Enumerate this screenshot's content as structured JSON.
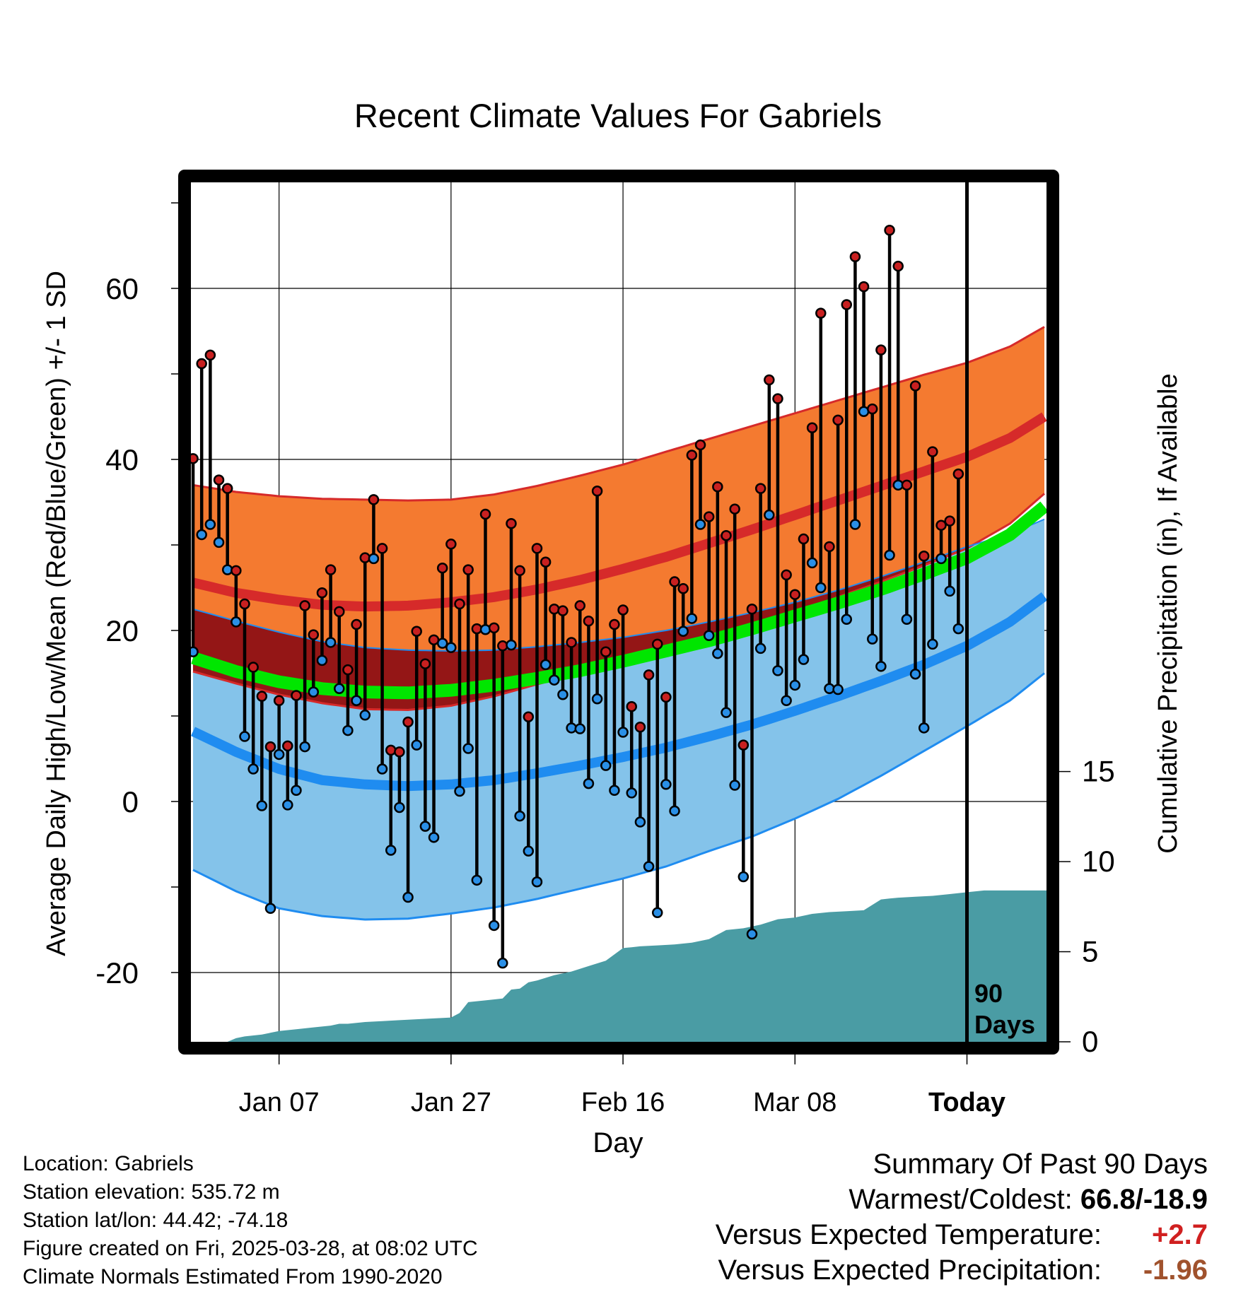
{
  "chart_data": {
    "type": "line",
    "title": "Recent Climate Values For Gabriels",
    "xlabel": "Day",
    "ylabel": "Average Daily High/Low/Mean (Red/Blue/Green) +/- 1 SD",
    "y2label": "Cumulative Precipitation (in), If Available",
    "ylim": [
      -28.1,
      72.4
    ],
    "y2lim": [
      0,
      47.7
    ],
    "xlim": [
      -0.25,
      99.25
    ],
    "yticks": [
      "60",
      "40",
      "20",
      "0",
      "-20"
    ],
    "ytick_values": [
      60,
      40,
      20,
      0,
      -20
    ],
    "y2ticks": [
      "15",
      "10",
      "5",
      "0"
    ],
    "y2tick_values": [
      15,
      10,
      5,
      0
    ],
    "xticks": [
      "Jan 07",
      "Jan 27",
      "Feb 16",
      "Mar 08",
      "Today"
    ],
    "xtick_days": [
      10,
      30,
      50,
      70,
      90
    ],
    "today_marker": {
      "day": 90,
      "label_line1": "90",
      "label_line2": "Days"
    },
    "days": [
      0,
      1,
      2,
      3,
      4,
      5,
      6,
      7,
      8,
      9,
      10,
      11,
      12,
      13,
      14,
      15,
      16,
      17,
      18,
      19,
      20,
      21,
      22,
      23,
      24,
      25,
      26,
      27,
      28,
      29,
      30,
      31,
      32,
      33,
      34,
      35,
      36,
      37,
      38,
      39,
      40,
      41,
      42,
      43,
      44,
      45,
      46,
      47,
      48,
      49,
      50,
      51,
      52,
      53,
      54,
      55,
      56,
      57,
      58,
      59,
      60,
      61,
      62,
      63,
      64,
      65,
      66,
      67,
      68,
      69,
      70,
      71,
      72,
      73,
      74,
      75,
      76,
      77,
      78,
      79,
      80,
      81,
      82,
      83,
      84,
      85,
      86,
      87,
      88,
      89,
      90
    ],
    "highs": [
      40.1,
      51.2,
      52.2,
      37.6,
      36.6,
      27.0,
      23.1,
      15.7,
      12.3,
      6.4,
      11.8,
      6.5,
      12.4,
      22.9,
      19.5,
      24.4,
      27.1,
      22.2,
      15.4,
      20.7,
      28.5,
      35.3,
      29.6,
      6.0,
      5.8,
      9.3,
      19.9,
      16.1,
      18.9,
      27.3,
      30.1,
      23.1,
      27.1,
      20.2,
      33.6,
      20.3,
      18.2,
      32.5,
      27.0,
      9.9,
      29.6,
      28.0,
      22.5,
      22.3,
      18.6,
      22.9,
      21.1,
      36.3,
      17.5,
      20.7,
      22.4,
      11.1,
      8.7,
      14.8,
      18.4,
      12.2,
      25.7,
      24.9,
      40.5,
      41.7,
      33.3,
      36.8,
      31.1,
      34.2,
      6.6,
      22.5,
      36.6,
      49.3,
      47.1,
      26.5,
      24.2,
      30.7,
      43.7,
      57.1,
      29.8,
      44.6,
      58.1,
      63.7,
      60.2,
      45.9,
      52.8,
      66.8,
      62.6,
      37.0,
      48.6,
      28.7,
      40.9,
      32.3,
      32.8,
      38.3
    ],
    "lows": [
      17.5,
      31.2,
      32.4,
      30.3,
      27.1,
      21.0,
      7.6,
      3.8,
      -0.5,
      -12.5,
      5.5,
      -0.4,
      1.3,
      6.4,
      12.8,
      16.5,
      18.6,
      13.2,
      8.3,
      11.8,
      10.1,
      28.4,
      3.8,
      -5.7,
      -0.7,
      -11.2,
      6.6,
      -2.9,
      -4.2,
      18.5,
      18.0,
      1.2,
      6.2,
      -9.2,
      20.1,
      -14.5,
      -18.9,
      18.3,
      -1.7,
      -5.8,
      -9.4,
      16.0,
      14.2,
      12.5,
      8.6,
      8.5,
      2.1,
      12.0,
      4.2,
      1.3,
      8.1,
      1.0,
      -2.4,
      -7.6,
      -13.0,
      2.0,
      -1.1,
      19.9,
      21.4,
      32.4,
      19.4,
      17.3,
      10.4,
      1.9,
      -8.8,
      -15.5,
      17.9,
      33.5,
      15.3,
      11.8,
      13.6,
      16.6,
      27.9,
      25.0,
      13.2,
      13.1,
      21.3,
      32.4,
      45.6,
      19.0,
      15.8,
      28.8,
      37.0,
      21.3,
      14.9,
      8.6,
      18.4,
      28.4,
      24.6,
      20.2
    ],
    "normal_days": [
      0,
      5,
      10,
      15,
      20,
      25,
      30,
      35,
      40,
      45,
      50,
      55,
      60,
      65,
      70,
      75,
      80,
      85,
      90,
      95,
      99
    ],
    "normal_high": [
      25.6,
      24.4,
      23.6,
      23.0,
      22.8,
      22.9,
      23.3,
      23.9,
      24.8,
      25.9,
      27.2,
      28.6,
      30.2,
      31.8,
      33.5,
      35.2,
      36.9,
      38.6,
      40.3,
      42.5,
      45.0
    ],
    "normal_high_sd_upper": [
      37.0,
      36.2,
      35.7,
      35.4,
      35.3,
      35.2,
      35.3,
      35.9,
      36.9,
      38.1,
      39.4,
      40.9,
      42.4,
      43.9,
      45.4,
      46.9,
      48.4,
      49.9,
      51.3,
      53.2,
      55.5
    ],
    "normal_high_sd_lower": [
      15.2,
      13.8,
      12.5,
      11.5,
      10.8,
      10.7,
      11.2,
      12.3,
      13.7,
      15.0,
      16.3,
      17.6,
      19.0,
      20.5,
      22.1,
      23.9,
      25.7,
      27.6,
      29.6,
      32.5,
      36.0
    ],
    "normal_mean": [
      16.8,
      15.2,
      14.0,
      13.2,
      12.8,
      12.7,
      13.0,
      13.6,
      14.4,
      15.3,
      16.4,
      17.6,
      18.8,
      20.2,
      21.7,
      23.2,
      24.8,
      26.6,
      28.5,
      31.2,
      34.5
    ],
    "normal_low": [
      8.2,
      5.8,
      3.8,
      2.5,
      2.0,
      1.8,
      2.0,
      2.5,
      3.3,
      4.2,
      5.2,
      6.3,
      7.6,
      9.0,
      10.6,
      12.3,
      14.1,
      16.0,
      18.2,
      21.0,
      24.0
    ],
    "normal_low_sd_upper": [
      22.5,
      21.1,
      19.8,
      18.7,
      18.0,
      17.7,
      17.6,
      17.7,
      18.1,
      18.6,
      19.2,
      20.0,
      21.0,
      22.1,
      23.3,
      24.7,
      26.3,
      28.0,
      29.8,
      31.3,
      33.0
    ],
    "normal_low_sd_lower": [
      -8.0,
      -10.5,
      -12.5,
      -13.4,
      -13.8,
      -13.7,
      -13.1,
      -12.4,
      -11.4,
      -10.2,
      -9.0,
      -7.6,
      -5.8,
      -4.1,
      -2.0,
      0.3,
      3.0,
      5.9,
      8.8,
      11.8,
      15.0
    ],
    "precip_days": [
      0,
      4,
      5,
      6,
      8,
      10,
      12,
      14,
      16,
      17,
      18,
      20,
      22,
      24,
      26,
      28,
      30,
      31,
      32,
      33,
      34,
      36,
      37,
      38,
      39,
      40,
      42,
      44,
      46,
      48,
      50,
      51,
      52,
      54,
      56,
      58,
      60,
      62,
      64,
      66,
      68,
      70,
      72,
      74,
      76,
      78,
      80,
      81,
      82,
      84,
      86,
      88,
      90,
      92,
      94,
      96,
      99
    ],
    "precip_cumulative": [
      0.0,
      0.0,
      0.2,
      0.3,
      0.4,
      0.6,
      0.7,
      0.8,
      0.9,
      1.0,
      1.0,
      1.1,
      1.15,
      1.2,
      1.25,
      1.3,
      1.35,
      1.6,
      2.2,
      2.25,
      2.3,
      2.4,
      2.9,
      2.95,
      3.3,
      3.4,
      3.7,
      3.9,
      4.2,
      4.5,
      5.2,
      5.25,
      5.3,
      5.35,
      5.4,
      5.5,
      5.7,
      6.2,
      6.3,
      6.5,
      6.8,
      6.9,
      7.1,
      7.2,
      7.25,
      7.3,
      7.9,
      7.95,
      8.0,
      8.05,
      8.1,
      8.2,
      8.3,
      8.4,
      8.4,
      8.4,
      8.4
    ]
  },
  "info": {
    "location": "Location: Gabriels",
    "elevation": "Station elevation: 535.72 m",
    "latlon": "Station lat/lon: 44.42; -74.18",
    "created": "Figure created on Fri, 2025-03-28, at 08:02 UTC",
    "normals": "Climate Normals Estimated From 1990-2020"
  },
  "summary": {
    "title": "Summary Of Past 90 Days",
    "warm_cold_label": "Warmest/Coldest: ",
    "warm_cold_value": "66.8/-18.9",
    "vs_temp_label": "Versus Expected Temperature:",
    "vs_temp_value": "+2.7",
    "vs_prec_label": "Versus Expected Precipitation:",
    "vs_prec_value": "-1.96"
  },
  "colors": {
    "high_band": "#f47a30",
    "high_line": "#d62a2a",
    "overlap_band": "#941616",
    "low_band": "#84c3ea",
    "low_line": "#1f8cf0",
    "mean_line": "#00e600",
    "precip": "#4a9ca4",
    "high_dot": "#c82020",
    "low_dot": "#2a8fe6"
  }
}
